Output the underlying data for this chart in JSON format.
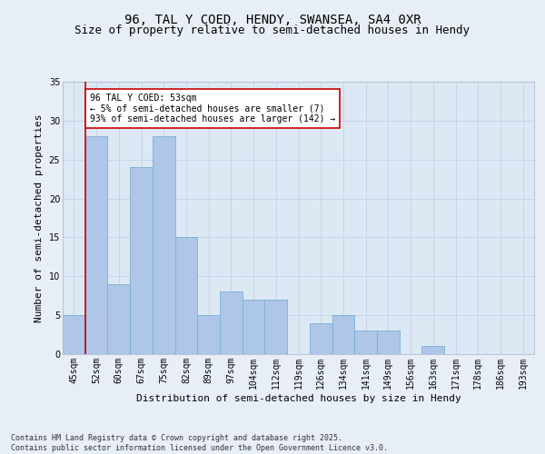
{
  "title1": "96, TAL Y COED, HENDY, SWANSEA, SA4 0XR",
  "title2": "Size of property relative to semi-detached houses in Hendy",
  "xlabel": "Distribution of semi-detached houses by size in Hendy",
  "ylabel": "Number of semi-detached properties",
  "categories": [
    "45sqm",
    "52sqm",
    "60sqm",
    "67sqm",
    "75sqm",
    "82sqm",
    "89sqm",
    "97sqm",
    "104sqm",
    "112sqm",
    "119sqm",
    "126sqm",
    "134sqm",
    "141sqm",
    "149sqm",
    "156sqm",
    "163sqm",
    "171sqm",
    "178sqm",
    "186sqm",
    "193sqm"
  ],
  "values": [
    5,
    28,
    9,
    24,
    28,
    15,
    5,
    8,
    7,
    7,
    0,
    4,
    5,
    3,
    3,
    0,
    1,
    0,
    0,
    0,
    0
  ],
  "bar_color": "#aec6e8",
  "bar_edge_color": "#7aafd4",
  "vline_color": "#cc0000",
  "annotation_text": "96 TAL Y COED: 53sqm\n← 5% of semi-detached houses are smaller (7)\n93% of semi-detached houses are larger (142) →",
  "annotation_box_color": "#ffffff",
  "annotation_box_edge_color": "#cc0000",
  "ylim": [
    0,
    35
  ],
  "yticks": [
    0,
    5,
    10,
    15,
    20,
    25,
    30,
    35
  ],
  "grid_color": "#c8d4e8",
  "background_color": "#dde8f5",
  "fig_background": "#e8eef5",
  "footnote": "Contains HM Land Registry data © Crown copyright and database right 2025.\nContains public sector information licensed under the Open Government Licence v3.0.",
  "title_fontsize": 10,
  "subtitle_fontsize": 9,
  "axis_label_fontsize": 8,
  "tick_fontsize": 7,
  "annotation_fontsize": 7,
  "footnote_fontsize": 6
}
